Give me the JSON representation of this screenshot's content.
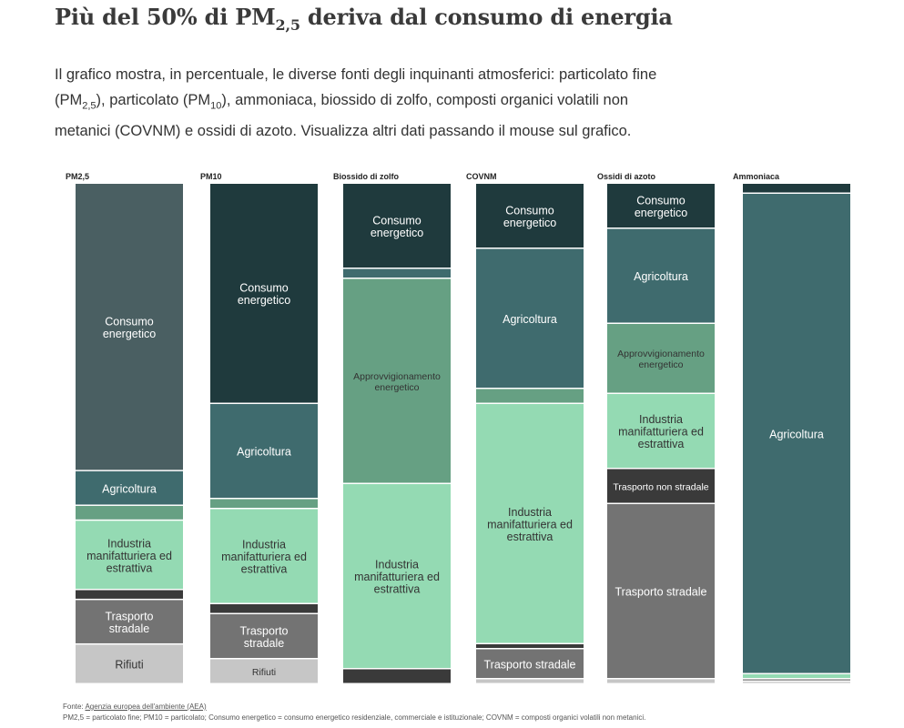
{
  "header": {
    "title_pre": "Più del 50% di PM",
    "title_sub": "2,5",
    "title_post": " deriva dal consumo di energia",
    "desc_1": "Il grafico mostra, in percentuale, le diverse fonti degli inquinanti atmosferici: particolato fine (PM",
    "desc_sub1": "2,5",
    "desc_2": "), particolato (PM",
    "desc_sub2": "10",
    "desc_3": "), ammoniaca, biossido di zolfo, composti organici volatili non metanici (COVNM) e ossidi di azoto. Visualizza altri dati passando il mouse sul grafico."
  },
  "colors": {
    "Consumo energetico": "#1f3a3d",
    "Agricoltura": "#3f6b6e",
    "Approvvigionamento energetico": "#66a083",
    "Industria manifatturiera ed estrattiva": "#94dab3",
    "Trasporto non stradale": "#3a3a3a",
    "Trasporto stradale": "#737373",
    "Rifiuti": "#c6c6c6",
    "pm25_consumo": "#4a5f62"
  },
  "chart_data": {
    "type": "stacked-bar",
    "unit": "%",
    "ylim": [
      0,
      100
    ],
    "categories": [
      "PM2,5",
      "PM10",
      "Biossido di zolfo",
      "COVNM",
      "Ossidi di azoto",
      "Ammoniaca"
    ],
    "columns": [
      {
        "name": "PM2,5",
        "segments": [
          {
            "source": "Consumo energetico",
            "value": 58,
            "label": "Consumo energetico"
          },
          {
            "source": "Agricoltura",
            "value": 7,
            "label": "Agricoltura"
          },
          {
            "source": "Approvvigionamento energetico",
            "value": 3,
            "label": ""
          },
          {
            "source": "Industria manifatturiera ed estrattiva",
            "value": 14,
            "label": "Industria manifatturiera ed estrattiva"
          },
          {
            "source": "Trasporto non stradale",
            "value": 2,
            "label": ""
          },
          {
            "source": "Trasporto stradale",
            "value": 9,
            "label": "Trasporto stradale"
          },
          {
            "source": "Rifiuti",
            "value": 8,
            "label": "Rifiuti"
          }
        ]
      },
      {
        "name": "PM10",
        "segments": [
          {
            "source": "Consumo energetico",
            "value": 44,
            "label": "Consumo energetico"
          },
          {
            "source": "Agricoltura",
            "value": 19,
            "label": "Agricoltura"
          },
          {
            "source": "Approvvigionamento energetico",
            "value": 2,
            "label": ""
          },
          {
            "source": "Industria manifatturiera ed estrattiva",
            "value": 19,
            "label": "Industria manifatturiera ed estrattiva"
          },
          {
            "source": "Trasporto non stradale",
            "value": 2,
            "label": ""
          },
          {
            "source": "Trasporto stradale",
            "value": 9,
            "label": "Trasporto stradale"
          },
          {
            "source": "Rifiuti",
            "value": 5,
            "label": "Rifiuti"
          }
        ]
      },
      {
        "name": "Biossido di zolfo",
        "segments": [
          {
            "source": "Consumo energetico",
            "value": 17,
            "label": "Consumo energetico"
          },
          {
            "source": "Agricoltura",
            "value": 2,
            "label": ""
          },
          {
            "source": "Approvvigionamento energetico",
            "value": 41,
            "label": "Approvvigionamento energetico"
          },
          {
            "source": "Industria manifatturiera ed estrattiva",
            "value": 37,
            "label": "Industria manifatturiera ed estrattiva"
          },
          {
            "source": "Trasporto non stradale",
            "value": 3,
            "label": ""
          }
        ]
      },
      {
        "name": "COVNM",
        "segments": [
          {
            "source": "Consumo energetico",
            "value": 13,
            "label": "Consumo energetico"
          },
          {
            "source": "Agricoltura",
            "value": 28,
            "label": "Agricoltura"
          },
          {
            "source": "Approvvigionamento energetico",
            "value": 3,
            "label": ""
          },
          {
            "source": "Industria manifatturiera ed estrattiva",
            "value": 48,
            "label": "Industria manifatturiera ed estrattiva"
          },
          {
            "source": "Trasporto non stradale",
            "value": 1,
            "label": ""
          },
          {
            "source": "Trasporto stradale",
            "value": 6,
            "label": "Trasporto stradale"
          },
          {
            "source": "Rifiuti",
            "value": 1,
            "label": ""
          }
        ]
      },
      {
        "name": "Ossidi di azoto",
        "segments": [
          {
            "source": "Consumo energetico",
            "value": 9,
            "label": "Consumo energetico"
          },
          {
            "source": "Agricoltura",
            "value": 19,
            "label": "Agricoltura"
          },
          {
            "source": "Approvvigionamento energetico",
            "value": 14,
            "label": "Approvvigionamento energetico"
          },
          {
            "source": "Industria manifatturiera ed estrattiva",
            "value": 15,
            "label": "Industria manifatturiera ed estrattiva"
          },
          {
            "source": "Trasporto non stradale",
            "value": 7,
            "label": "Trasporto non stradale"
          },
          {
            "source": "Trasporto stradale",
            "value": 35,
            "label": "Trasporto stradale"
          },
          {
            "source": "Rifiuti",
            "value": 1,
            "label": ""
          }
        ]
      },
      {
        "name": "Ammoniaca",
        "segments": [
          {
            "source": "Consumo energetico",
            "value": 2,
            "label": ""
          },
          {
            "source": "Agricoltura",
            "value": 96,
            "label": "Agricoltura"
          },
          {
            "source": "Industria manifatturiera ed estrattiva",
            "value": 1,
            "label": ""
          },
          {
            "source": "Trasporto stradale",
            "value": 0.5,
            "label": ""
          },
          {
            "source": "Rifiuti",
            "value": 0.5,
            "label": ""
          }
        ]
      }
    ]
  },
  "footer": {
    "source_prefix": "Fonte: ",
    "source_link": "Agenzia europea dell'ambiente (AEA)",
    "note": "PM2,5 = particolato fine; PM10 = particolato; Consumo energetico = consumo energetico residenziale, commerciale e istituzionale; COVNM = composti organici volatili non metanici."
  }
}
